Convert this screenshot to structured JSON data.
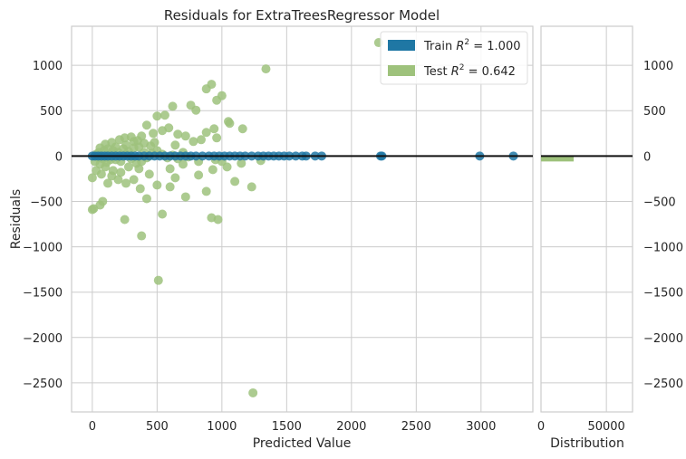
{
  "chart_data": {
    "type": "scatter",
    "title": "Residuals for ExtraTreesRegressor Model",
    "xlabel": "Predicted Value",
    "ylabel": "Residuals",
    "xlim": [
      -160,
      3400
    ],
    "ylim": [
      -2820,
      1430
    ],
    "xticks": [
      0,
      500,
      1000,
      1500,
      2000,
      2500,
      3000
    ],
    "xtick_labels": [
      "0",
      "500",
      "1000",
      "1500",
      "2000",
      "2500",
      "3000"
    ],
    "yticks": [
      1000,
      500,
      0,
      -500,
      -1000,
      -1500,
      -2000,
      -2500
    ],
    "ytick_labels": [
      "1000",
      "500",
      "0",
      "−500",
      "−1000",
      "−1500",
      "−2000",
      "−2500"
    ],
    "zero_line": 0,
    "legend": {
      "position": "top-right",
      "entries": [
        {
          "name": "train",
          "label_prefix": "Train ",
          "label_r2": "R",
          "label_sup": "2",
          "label_value": " = 1.000",
          "color": "#1f77a4"
        },
        {
          "name": "test",
          "label_prefix": "Test ",
          "label_r2": "R",
          "label_sup": "2",
          "label_value": " = 0.642",
          "color": "#9ec27c"
        }
      ]
    },
    "series": [
      {
        "name": "Train",
        "color": "#1f77a4",
        "points": [
          [
            0,
            0
          ],
          [
            20,
            0
          ],
          [
            45,
            0
          ],
          [
            70,
            0
          ],
          [
            95,
            0
          ],
          [
            120,
            0
          ],
          [
            150,
            0
          ],
          [
            180,
            0
          ],
          [
            210,
            0
          ],
          [
            240,
            0
          ],
          [
            270,
            0
          ],
          [
            300,
            0
          ],
          [
            330,
            0
          ],
          [
            360,
            0
          ],
          [
            400,
            0
          ],
          [
            440,
            0
          ],
          [
            480,
            0
          ],
          [
            520,
            0
          ],
          [
            560,
            0
          ],
          [
            600,
            0
          ],
          [
            640,
            0
          ],
          [
            680,
            0
          ],
          [
            720,
            0
          ],
          [
            760,
            0
          ],
          [
            800,
            0
          ],
          [
            850,
            0
          ],
          [
            900,
            0
          ],
          [
            940,
            0
          ],
          [
            980,
            0
          ],
          [
            1020,
            0
          ],
          [
            1060,
            0
          ],
          [
            1100,
            0
          ],
          [
            1140,
            0
          ],
          [
            1180,
            0
          ],
          [
            1230,
            0
          ],
          [
            1280,
            0
          ],
          [
            1320,
            0
          ],
          [
            1360,
            0
          ],
          [
            1400,
            0
          ],
          [
            1440,
            0
          ],
          [
            1480,
            0
          ],
          [
            1520,
            0
          ],
          [
            1570,
            0
          ],
          [
            1620,
            0
          ],
          [
            1650,
            0
          ],
          [
            1720,
            0
          ],
          [
            1770,
            0
          ],
          [
            2225,
            0
          ],
          [
            2235,
            0
          ],
          [
            2990,
            0
          ],
          [
            3250,
            0
          ]
        ]
      },
      {
        "name": "Test",
        "color": "#9ec27c",
        "points": [
          [
            2210,
            1250
          ],
          [
            1340,
            960
          ],
          [
            920,
            790
          ],
          [
            1000,
            665
          ],
          [
            880,
            740
          ],
          [
            760,
            560
          ],
          [
            960,
            615
          ],
          [
            800,
            505
          ],
          [
            1050,
            380
          ],
          [
            560,
            450
          ],
          [
            500,
            440
          ],
          [
            620,
            548
          ],
          [
            420,
            340
          ],
          [
            470,
            250
          ],
          [
            540,
            280
          ],
          [
            590,
            310
          ],
          [
            660,
            240
          ],
          [
            720,
            220
          ],
          [
            880,
            260
          ],
          [
            940,
            300
          ],
          [
            1060,
            360
          ],
          [
            1160,
            300
          ],
          [
            960,
            200
          ],
          [
            840,
            180
          ],
          [
            780,
            160
          ],
          [
            640,
            120
          ],
          [
            480,
            150
          ],
          [
            380,
            220
          ],
          [
            320,
            160
          ],
          [
            260,
            120
          ],
          [
            180,
            100
          ],
          [
            90,
            60
          ],
          [
            50,
            40
          ],
          [
            0,
            -240
          ],
          [
            0,
            -590
          ],
          [
            10,
            -580
          ],
          [
            80,
            -500
          ],
          [
            60,
            -540
          ],
          [
            250,
            -700
          ],
          [
            380,
            -880
          ],
          [
            540,
            -640
          ],
          [
            920,
            -680
          ],
          [
            970,
            -700
          ],
          [
            510,
            -1370
          ],
          [
            1240,
            -2610
          ],
          [
            1230,
            -340
          ],
          [
            1100,
            -280
          ],
          [
            880,
            -390
          ],
          [
            720,
            -450
          ],
          [
            600,
            -340
          ],
          [
            500,
            -320
          ],
          [
            420,
            -470
          ],
          [
            370,
            -360
          ],
          [
            320,
            -260
          ],
          [
            260,
            -300
          ],
          [
            200,
            -260
          ],
          [
            150,
            -220
          ],
          [
            120,
            -300
          ],
          [
            70,
            -200
          ],
          [
            30,
            -160
          ],
          [
            440,
            -200
          ],
          [
            360,
            -140
          ],
          [
            280,
            -120
          ],
          [
            220,
            -180
          ],
          [
            160,
            -160
          ],
          [
            100,
            -120
          ],
          [
            60,
            -90
          ],
          [
            20,
            -60
          ],
          [
            600,
            -140
          ],
          [
            700,
            -90
          ],
          [
            820,
            -60
          ],
          [
            950,
            -40
          ],
          [
            1040,
            -120
          ],
          [
            1150,
            -80
          ],
          [
            1300,
            -50
          ],
          [
            640,
            -240
          ],
          [
            820,
            -210
          ],
          [
            930,
            -150
          ],
          [
            1000,
            -60
          ],
          [
            120,
            80
          ],
          [
            160,
            60
          ],
          [
            200,
            40
          ],
          [
            240,
            80
          ],
          [
            280,
            50
          ],
          [
            320,
            90
          ],
          [
            360,
            100
          ],
          [
            400,
            40
          ],
          [
            180,
            -40
          ],
          [
            220,
            -60
          ],
          [
            140,
            -40
          ],
          [
            110,
            -70
          ],
          [
            80,
            -30
          ],
          [
            50,
            -20
          ],
          [
            30,
            20
          ],
          [
            140,
            20
          ],
          [
            260,
            20
          ],
          [
            300,
            -30
          ],
          [
            340,
            -80
          ],
          [
            380,
            -60
          ],
          [
            420,
            -20
          ],
          [
            460,
            30
          ],
          [
            500,
            60
          ],
          [
            540,
            20
          ],
          [
            580,
            -20
          ],
          [
            620,
            10
          ],
          [
            660,
            -30
          ],
          [
            700,
            40
          ],
          [
            740,
            -10
          ],
          [
            150,
            150
          ],
          [
            210,
            180
          ],
          [
            250,
            200
          ],
          [
            300,
            210
          ],
          [
            350,
            170
          ],
          [
            400,
            140
          ],
          [
            450,
            110
          ],
          [
            100,
            130
          ],
          [
            60,
            90
          ]
        ]
      }
    ],
    "distribution": {
      "xlabel": "Distribution",
      "xlim": [
        0,
        70000
      ],
      "xticks": [
        0,
        50000
      ],
      "xtick_labels": [
        "0",
        "50000"
      ],
      "bar": {
        "residual_low": -60,
        "residual_high": 0,
        "count": 25000,
        "color": "#9ec27c"
      }
    }
  }
}
